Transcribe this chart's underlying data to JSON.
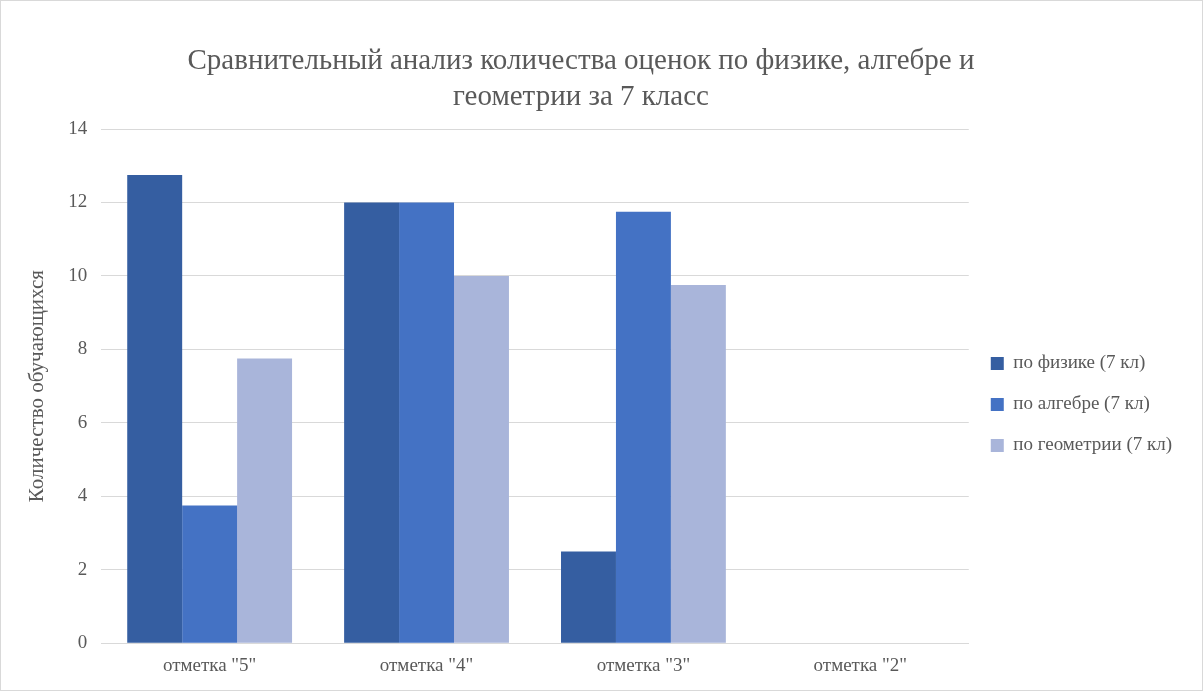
{
  "chart_data": {
    "type": "bar",
    "title": "Сравнительный анализ количества оценок по физике, алгебре и геометрии за 7 класс",
    "ylabel": "Количество обучающихся",
    "categories": [
      "отметка \"5\"",
      "отметка \"4\"",
      "отметка \"3\"",
      "отметка \"2\""
    ],
    "series": [
      {
        "name": "по физике (7 кл)",
        "color": "#355ea1",
        "values": [
          12.75,
          12,
          2.5,
          0
        ]
      },
      {
        "name": "по алгебре (7 кл)",
        "color": "#4472c4",
        "values": [
          3.75,
          12,
          11.75,
          0
        ]
      },
      {
        "name": "по геометрии (7 кл)",
        "color": "#a9b5da",
        "values": [
          7.75,
          10,
          9.75,
          0
        ]
      }
    ],
    "ylim": [
      0,
      14
    ],
    "yticks": [
      0,
      2,
      4,
      6,
      8,
      10,
      12,
      14
    ],
    "grid": "y",
    "legend": "right"
  }
}
